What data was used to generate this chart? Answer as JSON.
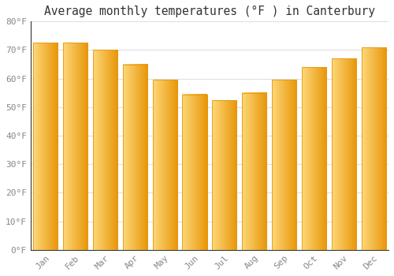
{
  "title": "Average monthly temperatures (°F ) in Canterbury",
  "months": [
    "Jan",
    "Feb",
    "Mar",
    "Apr",
    "May",
    "Jun",
    "Jul",
    "Aug",
    "Sep",
    "Oct",
    "Nov",
    "Dec"
  ],
  "values": [
    72.5,
    72.5,
    70,
    65,
    59.5,
    54.5,
    52.5,
    55,
    59.5,
    64,
    67,
    71
  ],
  "bar_color_main": "#FDB827",
  "bar_color_highlight": "#FDD878",
  "bar_color_edge": "#E8960A",
  "ylim": [
    0,
    80
  ],
  "yticks": [
    0,
    10,
    20,
    30,
    40,
    50,
    60,
    70,
    80
  ],
  "ytick_labels": [
    "0°F",
    "10°F",
    "20°F",
    "30°F",
    "40°F",
    "50°F",
    "60°F",
    "70°F",
    "80°F"
  ],
  "background_color": "#ffffff",
  "plot_bg_color": "#ffffff",
  "grid_color": "#e0e0e0",
  "title_fontsize": 10.5,
  "tick_fontsize": 8,
  "font_family": "monospace",
  "tick_color": "#888888",
  "spine_color": "#333333"
}
